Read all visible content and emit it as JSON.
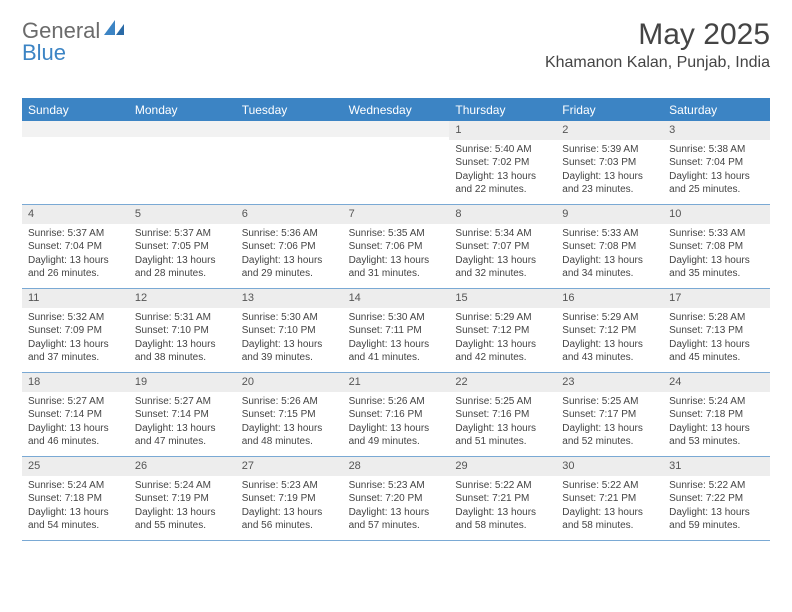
{
  "logo": {
    "part1": "General",
    "part2": "Blue"
  },
  "title": "May 2025",
  "location": "Khamanon Kalan, Punjab, India",
  "colors": {
    "brand": "#3c84c4",
    "header_bg": "#3c84c4",
    "header_fg": "#ffffff",
    "daynum_bg": "#ededed",
    "row_border": "#7aa9d4",
    "text": "#444444"
  },
  "day_names": [
    "Sunday",
    "Monday",
    "Tuesday",
    "Wednesday",
    "Thursday",
    "Friday",
    "Saturday"
  ],
  "blank_leading": 4,
  "days": [
    {
      "n": 1,
      "sunrise": "5:40 AM",
      "sunset": "7:02 PM",
      "daylight": "13 hours and 22 minutes."
    },
    {
      "n": 2,
      "sunrise": "5:39 AM",
      "sunset": "7:03 PM",
      "daylight": "13 hours and 23 minutes."
    },
    {
      "n": 3,
      "sunrise": "5:38 AM",
      "sunset": "7:04 PM",
      "daylight": "13 hours and 25 minutes."
    },
    {
      "n": 4,
      "sunrise": "5:37 AM",
      "sunset": "7:04 PM",
      "daylight": "13 hours and 26 minutes."
    },
    {
      "n": 5,
      "sunrise": "5:37 AM",
      "sunset": "7:05 PM",
      "daylight": "13 hours and 28 minutes."
    },
    {
      "n": 6,
      "sunrise": "5:36 AM",
      "sunset": "7:06 PM",
      "daylight": "13 hours and 29 minutes."
    },
    {
      "n": 7,
      "sunrise": "5:35 AM",
      "sunset": "7:06 PM",
      "daylight": "13 hours and 31 minutes."
    },
    {
      "n": 8,
      "sunrise": "5:34 AM",
      "sunset": "7:07 PM",
      "daylight": "13 hours and 32 minutes."
    },
    {
      "n": 9,
      "sunrise": "5:33 AM",
      "sunset": "7:08 PM",
      "daylight": "13 hours and 34 minutes."
    },
    {
      "n": 10,
      "sunrise": "5:33 AM",
      "sunset": "7:08 PM",
      "daylight": "13 hours and 35 minutes."
    },
    {
      "n": 11,
      "sunrise": "5:32 AM",
      "sunset": "7:09 PM",
      "daylight": "13 hours and 37 minutes."
    },
    {
      "n": 12,
      "sunrise": "5:31 AM",
      "sunset": "7:10 PM",
      "daylight": "13 hours and 38 minutes."
    },
    {
      "n": 13,
      "sunrise": "5:30 AM",
      "sunset": "7:10 PM",
      "daylight": "13 hours and 39 minutes."
    },
    {
      "n": 14,
      "sunrise": "5:30 AM",
      "sunset": "7:11 PM",
      "daylight": "13 hours and 41 minutes."
    },
    {
      "n": 15,
      "sunrise": "5:29 AM",
      "sunset": "7:12 PM",
      "daylight": "13 hours and 42 minutes."
    },
    {
      "n": 16,
      "sunrise": "5:29 AM",
      "sunset": "7:12 PM",
      "daylight": "13 hours and 43 minutes."
    },
    {
      "n": 17,
      "sunrise": "5:28 AM",
      "sunset": "7:13 PM",
      "daylight": "13 hours and 45 minutes."
    },
    {
      "n": 18,
      "sunrise": "5:27 AM",
      "sunset": "7:14 PM",
      "daylight": "13 hours and 46 minutes."
    },
    {
      "n": 19,
      "sunrise": "5:27 AM",
      "sunset": "7:14 PM",
      "daylight": "13 hours and 47 minutes."
    },
    {
      "n": 20,
      "sunrise": "5:26 AM",
      "sunset": "7:15 PM",
      "daylight": "13 hours and 48 minutes."
    },
    {
      "n": 21,
      "sunrise": "5:26 AM",
      "sunset": "7:16 PM",
      "daylight": "13 hours and 49 minutes."
    },
    {
      "n": 22,
      "sunrise": "5:25 AM",
      "sunset": "7:16 PM",
      "daylight": "13 hours and 51 minutes."
    },
    {
      "n": 23,
      "sunrise": "5:25 AM",
      "sunset": "7:17 PM",
      "daylight": "13 hours and 52 minutes."
    },
    {
      "n": 24,
      "sunrise": "5:24 AM",
      "sunset": "7:18 PM",
      "daylight": "13 hours and 53 minutes."
    },
    {
      "n": 25,
      "sunrise": "5:24 AM",
      "sunset": "7:18 PM",
      "daylight": "13 hours and 54 minutes."
    },
    {
      "n": 26,
      "sunrise": "5:24 AM",
      "sunset": "7:19 PM",
      "daylight": "13 hours and 55 minutes."
    },
    {
      "n": 27,
      "sunrise": "5:23 AM",
      "sunset": "7:19 PM",
      "daylight": "13 hours and 56 minutes."
    },
    {
      "n": 28,
      "sunrise": "5:23 AM",
      "sunset": "7:20 PM",
      "daylight": "13 hours and 57 minutes."
    },
    {
      "n": 29,
      "sunrise": "5:22 AM",
      "sunset": "7:21 PM",
      "daylight": "13 hours and 58 minutes."
    },
    {
      "n": 30,
      "sunrise": "5:22 AM",
      "sunset": "7:21 PM",
      "daylight": "13 hours and 58 minutes."
    },
    {
      "n": 31,
      "sunrise": "5:22 AM",
      "sunset": "7:22 PM",
      "daylight": "13 hours and 59 minutes."
    }
  ],
  "labels": {
    "sunrise_prefix": "Sunrise: ",
    "sunset_prefix": "Sunset: ",
    "daylight_prefix": "Daylight: "
  }
}
